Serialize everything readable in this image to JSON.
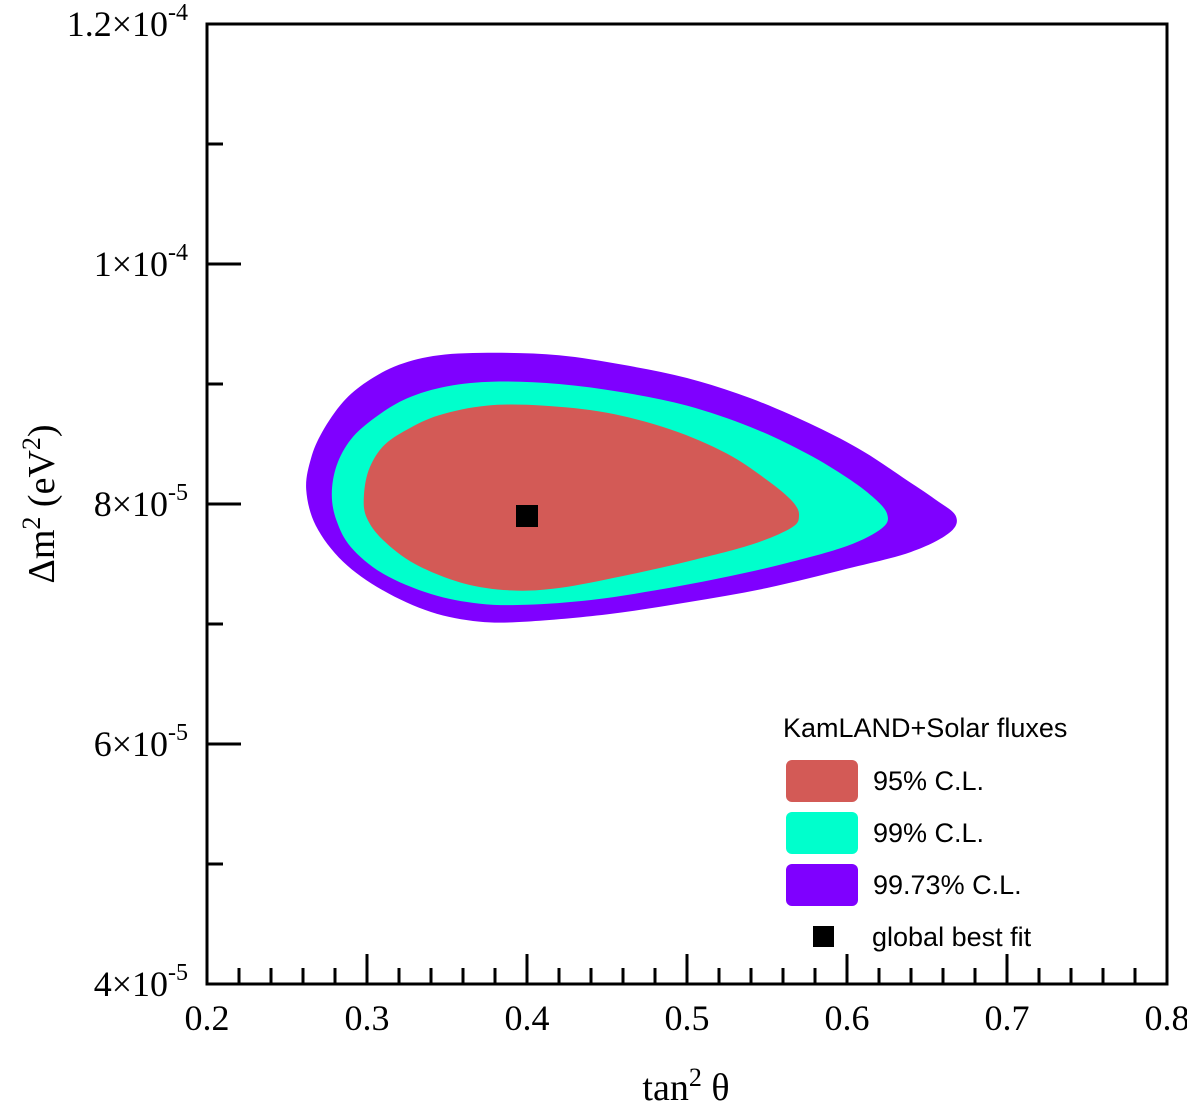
{
  "chart_data": {
    "type": "contour",
    "x_axis": {
      "label": "tan",
      "label_sup": "2",
      "label_suffix": " θ",
      "range": [
        0.2,
        0.8
      ],
      "ticks": [
        0.2,
        0.3,
        0.4,
        0.5,
        0.6,
        0.7,
        0.8
      ],
      "tick_labels": [
        "0.2",
        "0.3",
        "0.4",
        "0.5",
        "0.6",
        "0.7",
        "0.8"
      ],
      "minor_step": 0.02
    },
    "y_axis": {
      "label": "Δm",
      "label_sup": "2",
      "label_mid": " (eV",
      "label_sup2": "2",
      "label_end": ")",
      "range": [
        4e-05,
        0.00012
      ],
      "ticks": [
        {
          "value": 4e-05,
          "mant": "4×10",
          "exp": "-5"
        },
        {
          "value": 6e-05,
          "mant": "6×10",
          "exp": "-5"
        },
        {
          "value": 8e-05,
          "mant": "8×10",
          "exp": "-5"
        },
        {
          "value": 0.0001,
          "mant": "1×10",
          "exp": "-4"
        },
        {
          "value": 0.00012,
          "mant": "1.2×10",
          "exp": "-4"
        }
      ],
      "minor_step": 1e-05
    },
    "regions": [
      {
        "name": "99.73% C.L.",
        "color": "#7f00ff",
        "boundary": [
          [
            0.262,
            8.12e-05
          ],
          [
            0.265,
            8.38e-05
          ],
          [
            0.272,
            8.6e-05
          ],
          [
            0.285,
            8.85e-05
          ],
          [
            0.3,
            9.02e-05
          ],
          [
            0.32,
            9.16e-05
          ],
          [
            0.345,
            9.24e-05
          ],
          [
            0.38,
            9.26e-05
          ],
          [
            0.42,
            9.24e-05
          ],
          [
            0.46,
            9.16e-05
          ],
          [
            0.5,
            9.05e-05
          ],
          [
            0.54,
            8.88e-05
          ],
          [
            0.58,
            8.65e-05
          ],
          [
            0.61,
            8.44e-05
          ],
          [
            0.635,
            8.22e-05
          ],
          [
            0.655,
            8.04e-05
          ],
          [
            0.668,
            7.9e-05
          ],
          [
            0.664,
            7.76e-05
          ],
          [
            0.64,
            7.6e-05
          ],
          [
            0.6,
            7.46e-05
          ],
          [
            0.55,
            7.3e-05
          ],
          [
            0.5,
            7.18e-05
          ],
          [
            0.45,
            7.08e-05
          ],
          [
            0.4,
            7.02e-05
          ],
          [
            0.37,
            7.02e-05
          ],
          [
            0.34,
            7.1e-05
          ],
          [
            0.31,
            7.28e-05
          ],
          [
            0.285,
            7.52e-05
          ],
          [
            0.268,
            7.82e-05
          ]
        ]
      },
      {
        "name": "99% C.L.",
        "color": "#00ffcc",
        "boundary": [
          [
            0.278,
            8.08e-05
          ],
          [
            0.281,
            8.32e-05
          ],
          [
            0.29,
            8.54e-05
          ],
          [
            0.305,
            8.72e-05
          ],
          [
            0.325,
            8.88e-05
          ],
          [
            0.35,
            8.98e-05
          ],
          [
            0.38,
            9.02e-05
          ],
          [
            0.42,
            9e-05
          ],
          [
            0.46,
            8.93e-05
          ],
          [
            0.5,
            8.82e-05
          ],
          [
            0.54,
            8.64e-05
          ],
          [
            0.575,
            8.42e-05
          ],
          [
            0.6,
            8.22e-05
          ],
          [
            0.616,
            8.06e-05
          ],
          [
            0.625,
            7.92e-05
          ],
          [
            0.622,
            7.8e-05
          ],
          [
            0.6,
            7.65e-05
          ],
          [
            0.56,
            7.5e-05
          ],
          [
            0.52,
            7.38e-05
          ],
          [
            0.48,
            7.28e-05
          ],
          [
            0.44,
            7.2e-05
          ],
          [
            0.4,
            7.16e-05
          ],
          [
            0.37,
            7.17e-05
          ],
          [
            0.34,
            7.25e-05
          ],
          [
            0.31,
            7.42e-05
          ],
          [
            0.29,
            7.64e-05
          ],
          [
            0.281,
            7.86e-05
          ]
        ]
      },
      {
        "name": "95% C.L.",
        "color": "#d35a56",
        "boundary": [
          [
            0.298,
            8.05e-05
          ],
          [
            0.301,
            8.28e-05
          ],
          [
            0.31,
            8.48e-05
          ],
          [
            0.325,
            8.62e-05
          ],
          [
            0.345,
            8.74e-05
          ],
          [
            0.375,
            8.82e-05
          ],
          [
            0.41,
            8.82e-05
          ],
          [
            0.45,
            8.76e-05
          ],
          [
            0.49,
            8.62e-05
          ],
          [
            0.525,
            8.42e-05
          ],
          [
            0.55,
            8.2e-05
          ],
          [
            0.566,
            8.02e-05
          ],
          [
            0.57,
            7.9e-05
          ],
          [
            0.565,
            7.8e-05
          ],
          [
            0.54,
            7.66e-05
          ],
          [
            0.5,
            7.52e-05
          ],
          [
            0.46,
            7.4e-05
          ],
          [
            0.42,
            7.3e-05
          ],
          [
            0.39,
            7.28e-05
          ],
          [
            0.36,
            7.34e-05
          ],
          [
            0.33,
            7.5e-05
          ],
          [
            0.31,
            7.7e-05
          ],
          [
            0.3,
            7.88e-05
          ]
        ]
      }
    ],
    "best_fit": {
      "x": 0.4,
      "y": 7.9e-05,
      "color": "#000000"
    },
    "legend": {
      "title": "KamLAND+Solar fluxes",
      "position": "bottom-right",
      "entries": [
        {
          "label": "95% C.L.",
          "color": "#d35a56",
          "kind": "swatch"
        },
        {
          "label": "99% C.L.",
          "color": "#00ffcc",
          "kind": "swatch"
        },
        {
          "label": "99.73% C.L.",
          "color": "#7f00ff",
          "kind": "swatch"
        },
        {
          "label": "global best fit",
          "color": "#000000",
          "kind": "marker"
        }
      ]
    },
    "grid": false
  }
}
